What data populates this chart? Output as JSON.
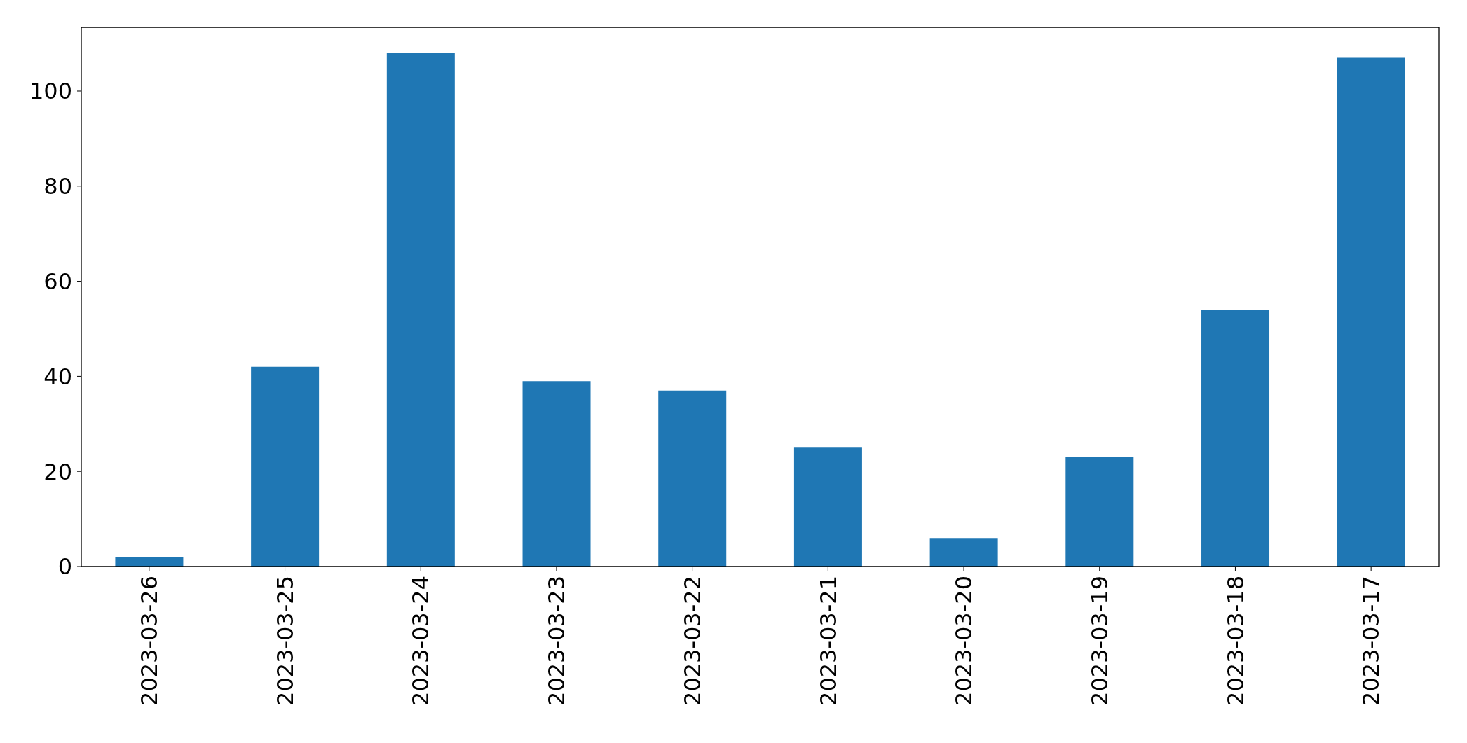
{
  "chart_data": {
    "type": "bar",
    "categories": [
      "2023-03-26",
      "2023-03-25",
      "2023-03-24",
      "2023-03-23",
      "2023-03-22",
      "2023-03-21",
      "2023-03-20",
      "2023-03-19",
      "2023-03-18",
      "2023-03-17"
    ],
    "values": [
      2,
      42,
      108,
      39,
      37,
      25,
      6,
      23,
      54,
      107
    ],
    "color": "#1f77b4",
    "ylim": [
      0,
      113.4
    ],
    "yticks": [
      0,
      20,
      40,
      60,
      80,
      100
    ]
  }
}
